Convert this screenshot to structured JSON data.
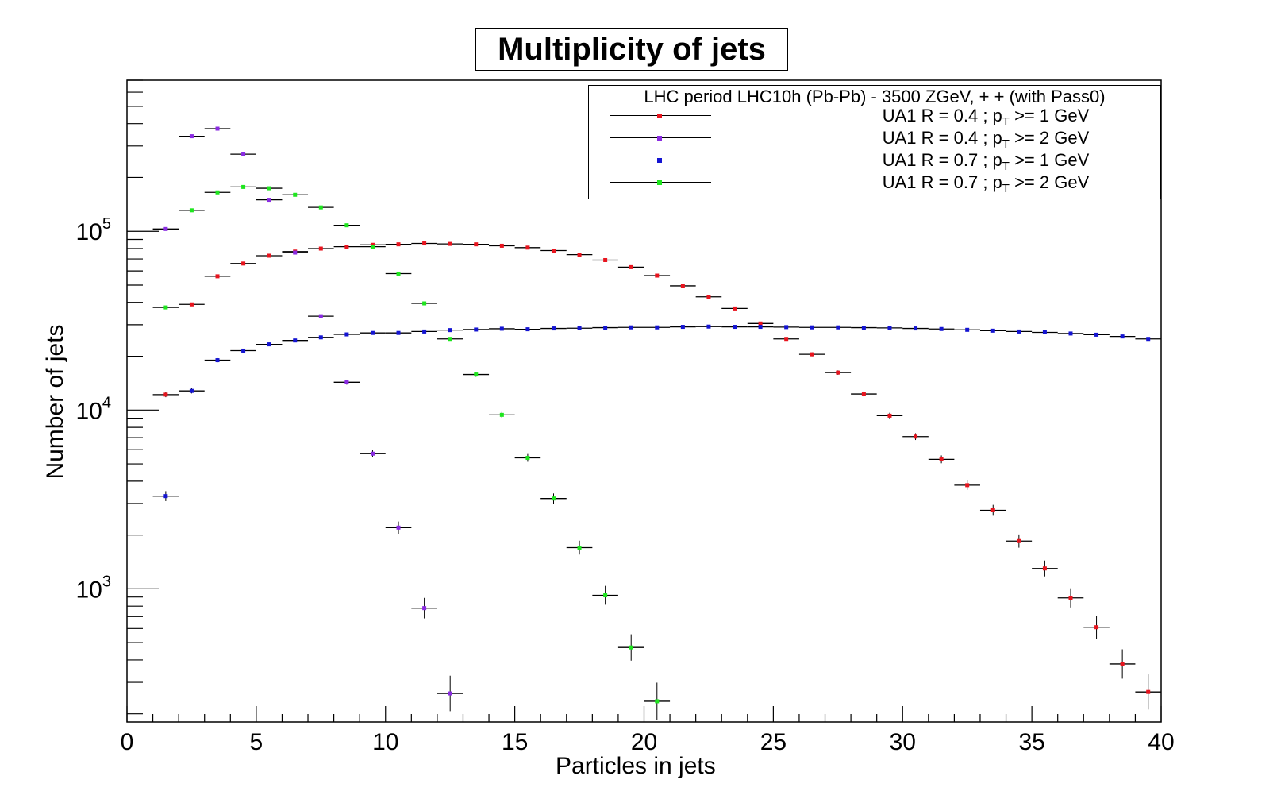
{
  "chart_data": {
    "type": "scatter",
    "title": "Multiplicity of jets",
    "xlabel": "Particles in jets",
    "ylabel": "Number of jets",
    "xlim": [
      0,
      40
    ],
    "ylim": [
      180,
      700000
    ],
    "y_scale": "log",
    "x_ticks": [
      "0",
      "5",
      "10",
      "15",
      "20",
      "25",
      "30",
      "35",
      "40"
    ],
    "y_ticks": [
      {
        "base": "10",
        "exp": "3",
        "value": 1000
      },
      {
        "base": "10",
        "exp": "4",
        "value": 10000
      },
      {
        "base": "10",
        "exp": "5",
        "value": 100000
      }
    ],
    "legend": {
      "header": "LHC period LHC10h (Pb-Pb) - 3500 ZGeV, + + (with Pass0)",
      "placement": "top-right"
    },
    "series": [
      {
        "label_main": "UA1 R = 0.4 ; p",
        "label_sub": "T",
        "label_tail": " >= 1 GeV",
        "color": "#e8141e",
        "x": [
          1.5,
          2.5,
          3.5,
          4.5,
          5.5,
          6.5,
          7.5,
          8.5,
          9.5,
          10.5,
          11.5,
          12.5,
          13.5,
          14.5,
          15.5,
          16.5,
          17.5,
          18.5,
          19.5,
          20.5,
          21.5,
          22.5,
          23.5,
          24.5,
          25.5,
          26.5,
          27.5,
          28.5,
          29.5,
          30.5,
          31.5,
          32.5,
          33.5,
          34.5,
          35.5,
          36.5,
          37.5,
          38.5,
          39.5
        ],
        "y": [
          12200,
          39000,
          56000,
          66000,
          73000,
          77000,
          80000,
          82000,
          84000,
          84500,
          85500,
          85000,
          84500,
          83000,
          81000,
          78000,
          74000,
          69000,
          63000,
          56500,
          49500,
          43000,
          37000,
          30500,
          25000,
          20500,
          16200,
          12300,
          9300,
          7100,
          5300,
          3800,
          2750,
          1850,
          1300,
          890,
          610,
          380,
          265
        ]
      },
      {
        "label_main": "UA1 R = 0.4 ; p",
        "label_sub": "T",
        "label_tail": " >= 2 GeV",
        "color": "#8a2be2",
        "x": [
          1.5,
          2.5,
          3.5,
          4.5,
          5.5,
          6.5,
          7.5,
          8.5,
          9.5,
          10.5,
          11.5,
          12.5
        ],
        "y": [
          103000,
          340000,
          375000,
          270000,
          150000,
          76000,
          33500,
          14300,
          5700,
          2200,
          780,
          260
        ]
      },
      {
        "label_main": "UA1 R = 0.7 ; p",
        "label_sub": "T",
        "label_tail": " >= 1 GeV",
        "color": "#1414d2",
        "x": [
          1.5,
          2.5,
          3.5,
          4.5,
          5.5,
          6.5,
          7.5,
          8.5,
          9.5,
          10.5,
          11.5,
          12.5,
          13.5,
          14.5,
          15.5,
          16.5,
          17.5,
          18.5,
          19.5,
          20.5,
          21.5,
          22.5,
          23.5,
          24.5,
          25.5,
          26.5,
          27.5,
          28.5,
          29.5,
          30.5,
          31.5,
          32.5,
          33.5,
          34.5,
          35.5,
          36.5,
          37.5,
          38.5,
          39.5
        ],
        "y": [
          3300,
          12800,
          19000,
          21500,
          23300,
          24500,
          25500,
          26500,
          27000,
          27000,
          27500,
          28000,
          28200,
          28500,
          28300,
          28600,
          28700,
          28900,
          29000,
          29000,
          29200,
          29300,
          29200,
          29200,
          29100,
          29000,
          29000,
          28900,
          28800,
          28600,
          28400,
          28100,
          27800,
          27500,
          27200,
          26800,
          26400,
          25800,
          25000
        ]
      },
      {
        "label_main": "UA1 R = 0.7 ; p",
        "label_sub": "T",
        "label_tail": " >= 2 GeV",
        "color": "#1ee61e",
        "x": [
          1.5,
          2.5,
          3.5,
          4.5,
          5.5,
          6.5,
          7.5,
          8.5,
          9.5,
          10.5,
          11.5,
          12.5,
          13.5,
          14.5,
          15.5,
          16.5,
          17.5,
          18.5,
          19.5,
          20.5
        ],
        "y": [
          37500,
          131000,
          165000,
          177000,
          174000,
          160000,
          136000,
          108000,
          82000,
          58000,
          39500,
          25000,
          15800,
          9400,
          5400,
          3200,
          1700,
          920,
          470,
          235
        ]
      }
    ]
  }
}
